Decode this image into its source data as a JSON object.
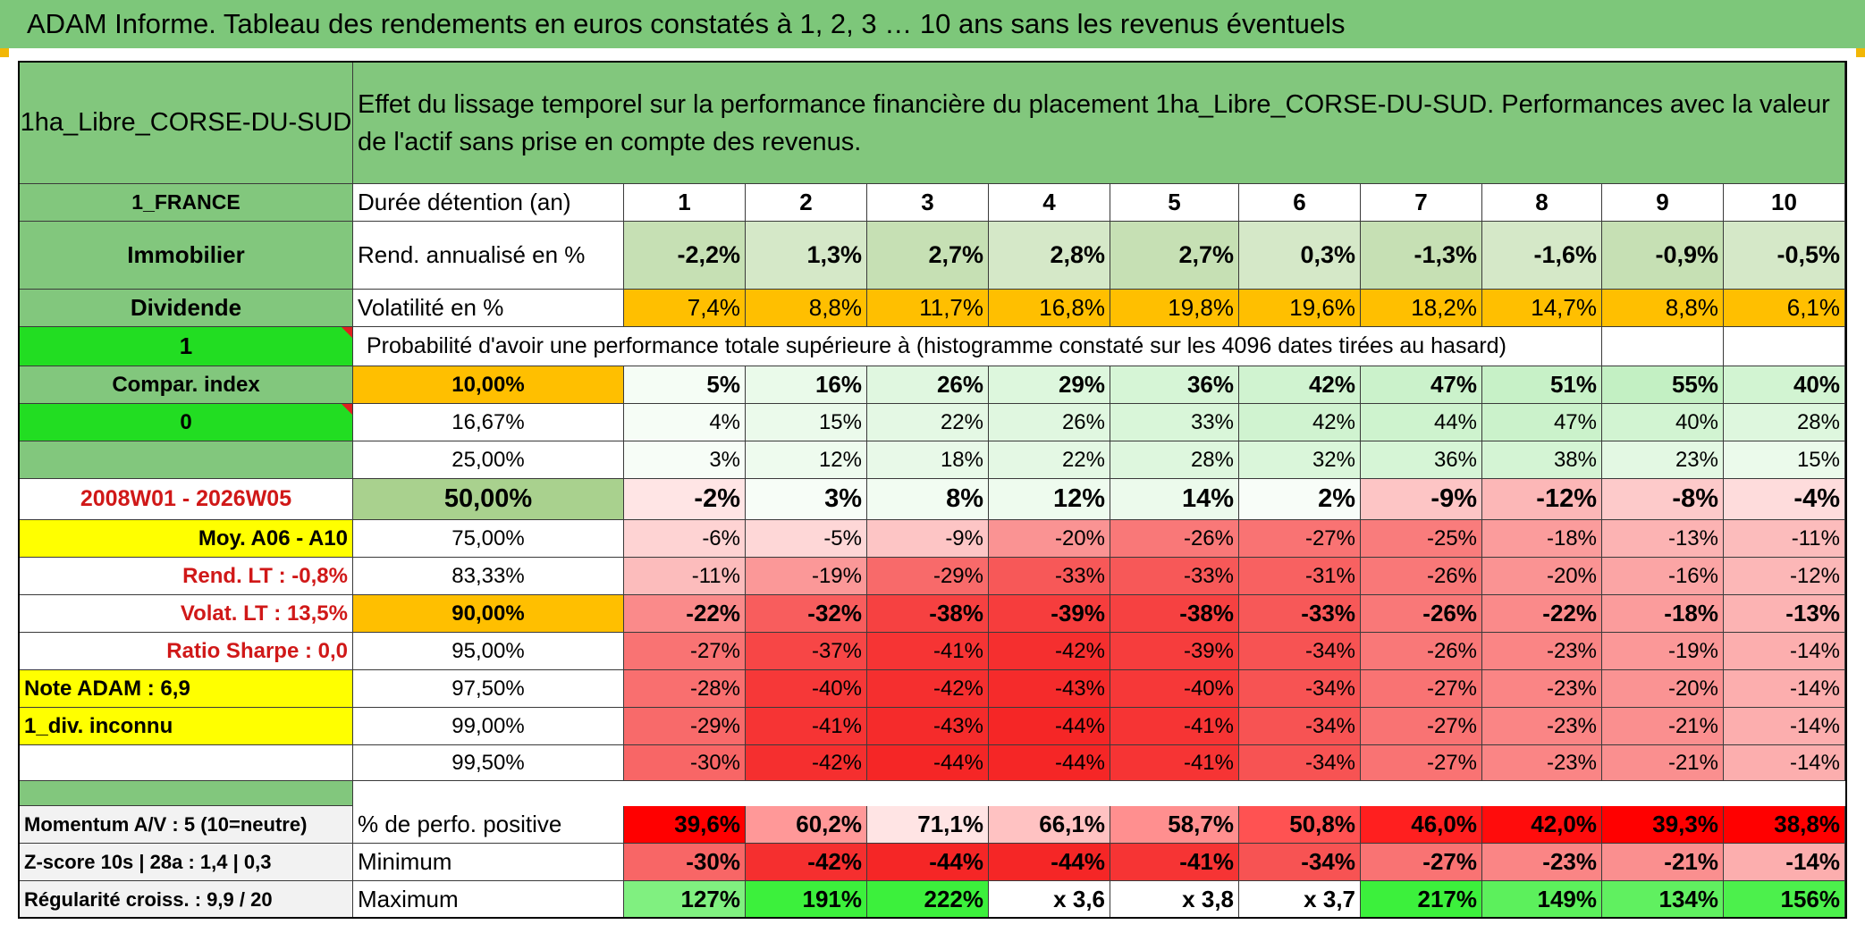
{
  "banner": {
    "title": "ADAM Informe. Tableau des rendements en euros constatés à 1, 2, 3 … 10 ans sans les revenus éventuels"
  },
  "left": {
    "asset_name": "1ha_Libre_CORSE-DU-SUD",
    "country": "1_FRANCE",
    "category": "Immobilier",
    "dividend_label": "Dividende",
    "dividend_value": "1",
    "compar_index_label": "Compar. index",
    "compar_index_value": "0",
    "period": "2008W01 - 2026W05",
    "moy": "Moy. A06 - A10",
    "rend_lt": "Rend. LT :    -0,8%",
    "volat_lt": "Volat. LT :    13,5%",
    "sharpe": "Ratio Sharpe :    0,0",
    "note_adam": "Note ADAM : 6,9",
    "div_inconnu": "1_div. inconnu",
    "momentum": "Momentum A/V : 5 (10=neutre)",
    "zscore": "Z-score 10s | 28a : 1,4 | 0,3",
    "regularite": "Régularité croiss. : 9,9 / 20"
  },
  "header": {
    "description": "Effet du lissage temporel sur la performance financière du placement 1ha_Libre_CORSE-DU-SUD. Performances avec la valeur de l'actif sans prise en compte des revenus.",
    "duree_label": "Durée détention (an)",
    "years": [
      "1",
      "2",
      "3",
      "4",
      "5",
      "6",
      "7",
      "8",
      "9",
      "10"
    ]
  },
  "rend": {
    "label": "Rend. annualisé en %",
    "values": [
      "-2,2%",
      "1,3%",
      "2,7%",
      "2,8%",
      "2,7%",
      "0,3%",
      "-1,3%",
      "-1,6%",
      "-0,9%",
      "-0,5%"
    ]
  },
  "vol": {
    "label": "Volatilité en %",
    "values": [
      "7,4%",
      "8,8%",
      "11,7%",
      "16,8%",
      "19,8%",
      "19,6%",
      "18,2%",
      "14,7%",
      "8,8%",
      "6,1%"
    ]
  },
  "proba": {
    "label": "Probabilité d'avoir une performance totale supérieure à (histogramme constaté sur les 4096 dates tirées au hasard)"
  },
  "quantiles": [
    {
      "p": "10,00%",
      "values": [
        "5%",
        "16%",
        "26%",
        "29%",
        "36%",
        "42%",
        "47%",
        "51%",
        "55%",
        "40%"
      ]
    },
    {
      "p": "16,67%",
      "values": [
        "4%",
        "15%",
        "22%",
        "26%",
        "33%",
        "42%",
        "44%",
        "47%",
        "40%",
        "28%"
      ]
    },
    {
      "p": "25,00%",
      "values": [
        "3%",
        "12%",
        "18%",
        "22%",
        "28%",
        "32%",
        "36%",
        "38%",
        "23%",
        "15%"
      ]
    },
    {
      "p": "50,00%",
      "values": [
        "-2%",
        "3%",
        "8%",
        "12%",
        "14%",
        "2%",
        "-9%",
        "-12%",
        "-8%",
        "-4%"
      ]
    },
    {
      "p": "75,00%",
      "values": [
        "-6%",
        "-5%",
        "-9%",
        "-20%",
        "-26%",
        "-27%",
        "-25%",
        "-18%",
        "-13%",
        "-11%"
      ]
    },
    {
      "p": "83,33%",
      "values": [
        "-11%",
        "-19%",
        "-29%",
        "-33%",
        "-33%",
        "-31%",
        "-26%",
        "-20%",
        "-16%",
        "-12%"
      ]
    },
    {
      "p": "90,00%",
      "values": [
        "-22%",
        "-32%",
        "-38%",
        "-39%",
        "-38%",
        "-33%",
        "-26%",
        "-22%",
        "-18%",
        "-13%"
      ]
    },
    {
      "p": "95,00%",
      "values": [
        "-27%",
        "-37%",
        "-41%",
        "-42%",
        "-39%",
        "-34%",
        "-26%",
        "-23%",
        "-19%",
        "-14%"
      ]
    },
    {
      "p": "97,50%",
      "values": [
        "-28%",
        "-40%",
        "-42%",
        "-43%",
        "-40%",
        "-34%",
        "-27%",
        "-23%",
        "-20%",
        "-14%"
      ]
    },
    {
      "p": "99,00%",
      "values": [
        "-29%",
        "-41%",
        "-43%",
        "-44%",
        "-41%",
        "-34%",
        "-27%",
        "-23%",
        "-21%",
        "-14%"
      ]
    },
    {
      "p": "99,50%",
      "values": [
        "-30%",
        "-42%",
        "-44%",
        "-44%",
        "-41%",
        "-34%",
        "-27%",
        "-23%",
        "-21%",
        "-14%"
      ]
    }
  ],
  "bottom": {
    "positive": {
      "label": "% de perfo. positive",
      "values": [
        "39,6%",
        "60,2%",
        "71,1%",
        "66,1%",
        "58,7%",
        "50,8%",
        "46,0%",
        "42,0%",
        "39,3%",
        "38,8%"
      ]
    },
    "minimum": {
      "label": "Minimum",
      "values": [
        "-30%",
        "-42%",
        "-44%",
        "-44%",
        "-41%",
        "-34%",
        "-27%",
        "-23%",
        "-21%",
        "-14%"
      ]
    },
    "maximum": {
      "label": "Maximum",
      "values": [
        "127%",
        "191%",
        "222%",
        "x 3,6",
        "x 3,8",
        "x 3,7",
        "217%",
        "149%",
        "134%",
        "156%"
      ]
    }
  },
  "colors": {
    "banner_green": "#7dc77a",
    "header_green": "#82c77d",
    "bright_green": "#22dd22",
    "yellow": "#ffff00",
    "orange": "#ffbf00",
    "median_green": "#a9d18e",
    "label_red": "#d01818"
  }
}
